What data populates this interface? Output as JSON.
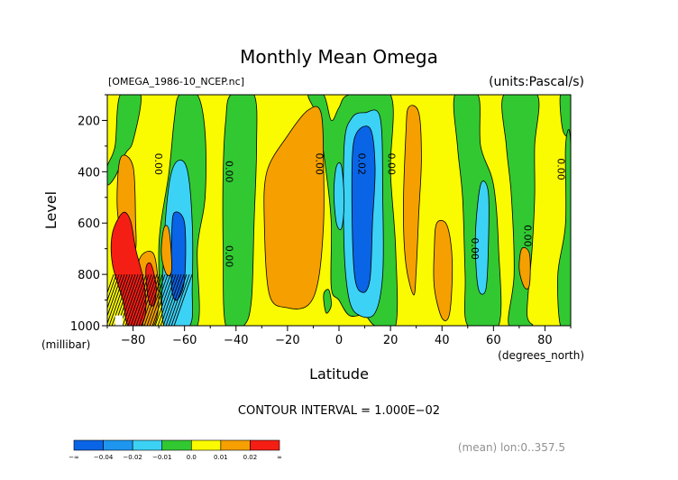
{
  "chart_data": {
    "type": "heatmap",
    "title": "Monthly Mean Omega",
    "file_label": "[OMEGA_1986-10_NCEP.nc]",
    "units_label": "(units:Pascal/s)",
    "xlabel": "Latitude",
    "x_units": "(degrees_north)",
    "ylabel": "Level",
    "y_units": "(millibar)",
    "xlim": [
      -90,
      90
    ],
    "ylim": [
      1000,
      100
    ],
    "x_ticks": [
      -80,
      -60,
      -40,
      -20,
      0,
      20,
      40,
      60,
      80
    ],
    "x_tick_labels": [
      "−80",
      "−60",
      "−40",
      "−20",
      "0",
      "20",
      "40",
      "60",
      "80"
    ],
    "y_ticks": [
      1000,
      800,
      600,
      400,
      200
    ],
    "y_tick_labels": [
      "1000",
      "800",
      "600",
      "400",
      "200"
    ],
    "contour_interval_text": "CONTOUR INTERVAL = 1.000E−02",
    "footer_text": "(mean) lon:0..357.5",
    "contour_labels": [
      {
        "lat": -71.5,
        "level": 370,
        "text": "0.00"
      },
      {
        "lat": -44,
        "level": 400,
        "text": "0.00"
      },
      {
        "lat": -44,
        "level": 730,
        "text": "0.00"
      },
      {
        "lat": -9,
        "level": 370,
        "text": "0.00"
      },
      {
        "lat": 7.5,
        "level": 370,
        "text": "0.02"
      },
      {
        "lat": 19,
        "level": 370,
        "text": "0.00"
      },
      {
        "lat": 51.5,
        "level": 700,
        "text": "0.00"
      },
      {
        "lat": 72,
        "level": 650,
        "text": "0.00"
      },
      {
        "lat": 85,
        "level": 390,
        "text": "0.00"
      }
    ],
    "colorbar": {
      "colors": [
        "#0a64e6",
        "#1e96f0",
        "#3cd2f5",
        "#32c832",
        "#fafa00",
        "#f5a000",
        "#f51e14"
      ],
      "labels": [
        "−∞",
        "−0.04",
        "−0.02",
        "−0.01",
        "0.0",
        "0.01",
        "0.02",
        "∞"
      ]
    },
    "bands": [
      {
        "name": "blue",
        "color": "#0a64e6",
        "regions": [
          [
            [
              6,
              270
            ],
            [
              12,
              230
            ],
            [
              14,
              380
            ],
            [
              13,
              600
            ],
            [
              12,
              820
            ],
            [
              9,
              870
            ],
            [
              6,
              800
            ],
            [
              5,
              500
            ]
          ],
          [
            [
              -64,
              560
            ],
            [
              -60,
              600
            ],
            [
              -60,
              820
            ],
            [
              -63,
              900
            ],
            [
              -65,
              850
            ],
            [
              -65,
              650
            ]
          ]
        ]
      },
      {
        "name": "lightblue",
        "color": "#3cd2f5",
        "regions": [
          [
            [
              5,
              190
            ],
            [
              10,
              170
            ],
            [
              16,
              190
            ],
            [
              17,
              500
            ],
            [
              17,
              800
            ],
            [
              14,
              950
            ],
            [
              8,
              960
            ],
            [
              4,
              900
            ],
            [
              2,
              700
            ],
            [
              2,
              300
            ]
          ],
          [
            [
              -63,
              360
            ],
            [
              -59,
              390
            ],
            [
              -57,
              600
            ],
            [
              -57,
              850
            ],
            [
              -58,
              1000
            ],
            [
              -68,
              1000
            ],
            [
              -68,
              700
            ],
            [
              -66,
              450
            ]
          ],
          [
            [
              -1,
              380
            ],
            [
              1,
              380
            ],
            [
              2,
              520
            ],
            [
              1,
              620
            ],
            [
              -1,
              600
            ],
            [
              -2,
              480
            ]
          ],
          [
            [
              55,
              450
            ],
            [
              58,
              480
            ],
            [
              58,
              700
            ],
            [
              57,
              860
            ],
            [
              54,
              850
            ],
            [
              53,
              650
            ]
          ]
        ]
      },
      {
        "name": "orange",
        "color": "#f5a000",
        "regions": [
          [
            [
              -28,
              400
            ],
            [
              -20,
              260
            ],
            [
              -12,
              160
            ],
            [
              -7,
              170
            ],
            [
              -6,
              380
            ],
            [
              -6,
              600
            ],
            [
              -8,
              820
            ],
            [
              -12,
              920
            ],
            [
              -20,
              930
            ],
            [
              -27,
              880
            ],
            [
              -29,
              600
            ]
          ],
          [
            [
              27,
              150
            ],
            [
              31,
              170
            ],
            [
              32,
              350
            ],
            [
              31,
              560
            ],
            [
              30,
              780
            ],
            [
              29,
              880
            ],
            [
              26,
              760
            ],
            [
              25,
              550
            ],
            [
              26,
              250
            ]
          ],
          [
            [
              38,
              600
            ],
            [
              42,
              610
            ],
            [
              44,
              750
            ],
            [
              43,
              950
            ],
            [
              40,
              970
            ],
            [
              37,
              850
            ],
            [
              37,
              700
            ]
          ],
          [
            [
              -85,
              350
            ],
            [
              -80,
              380
            ],
            [
              -79,
              600
            ],
            [
              -79,
              700
            ],
            [
              -82,
              700
            ],
            [
              -86,
              560
            ]
          ],
          [
            [
              -78,
              760
            ],
            [
              -72,
              720
            ],
            [
              -70,
              900
            ],
            [
              -72,
              1000
            ],
            [
              -76,
              1000
            ]
          ],
          [
            [
              -68,
              620
            ],
            [
              -66,
              630
            ],
            [
              -65,
              780
            ],
            [
              -67,
              800
            ],
            [
              -69,
              720
            ]
          ],
          [
            [
              71,
              700
            ],
            [
              74,
              720
            ],
            [
              74,
              840
            ],
            [
              72,
              850
            ],
            [
              70,
              780
            ]
          ]
        ]
      },
      {
        "name": "red",
        "color": "#f51e14",
        "regions": [
          [
            [
              -88,
              640
            ],
            [
              -84,
              560
            ],
            [
              -81,
              590
            ],
            [
              -79,
              700
            ],
            [
              -76,
              820
            ],
            [
              -75,
              930
            ],
            [
              -77,
              1000
            ],
            [
              -82,
              1000
            ],
            [
              -84,
              900
            ],
            [
              -88,
              760
            ]
          ],
          [
            [
              -75,
              780
            ],
            [
              -73,
              760
            ],
            [
              -71,
              850
            ],
            [
              -72,
              920
            ],
            [
              -74,
              900
            ]
          ]
        ]
      },
      {
        "name": "green",
        "color": "#32c832",
        "regions": [
          [
            [
              -90,
              380
            ],
            [
              -87,
              300
            ],
            [
              -85,
              100
            ],
            [
              -77,
              100
            ],
            [
              -80,
              280
            ],
            [
              -83,
              330
            ],
            [
              -87,
              420
            ],
            [
              -90,
              450
            ]
          ],
          [
            [
              -62,
              100
            ],
            [
              -55,
              100
            ],
            [
              -52,
              250
            ],
            [
              -52,
              500
            ],
            [
              -55,
              700
            ],
            [
              -55,
              1000
            ],
            [
              -67,
              1000
            ],
            [
              -70,
              700
            ],
            [
              -66,
              400
            ],
            [
              -64,
              200
            ]
          ],
          [
            [
              -42,
              100
            ],
            [
              -33,
              100
            ],
            [
              -32,
              300
            ],
            [
              -33,
              600
            ],
            [
              -34,
              900
            ],
            [
              -37,
              1000
            ],
            [
              -44,
              1000
            ],
            [
              -45,
              700
            ],
            [
              -45,
              400
            ],
            [
              -44,
              200
            ]
          ],
          [
            [
              -12,
              100
            ],
            [
              -6,
              100
            ],
            [
              -3,
              200
            ],
            [
              0,
              150
            ],
            [
              4,
              100
            ],
            [
              20,
              100
            ],
            [
              20,
              400
            ],
            [
              22,
              700
            ],
            [
              22,
              1000
            ],
            [
              14,
              1000
            ],
            [
              10,
              960
            ],
            [
              4,
              960
            ],
            [
              0,
              900
            ],
            [
              -3,
              850
            ],
            [
              -3,
              600
            ],
            [
              -5,
              400
            ],
            [
              -8,
              200
            ]
          ],
          [
            [
              -6,
              880
            ],
            [
              -4,
              860
            ],
            [
              -3,
              920
            ],
            [
              -5,
              950
            ]
          ],
          [
            [
              45,
              100
            ],
            [
              54,
              100
            ],
            [
              55,
              300
            ],
            [
              60,
              450
            ],
            [
              62,
              700
            ],
            [
              62,
              1000
            ],
            [
              50,
              1000
            ],
            [
              49,
              800
            ],
            [
              48,
              500
            ],
            [
              46,
              300
            ]
          ],
          [
            [
              64,
              100
            ],
            [
              77,
              100
            ],
            [
              76,
              300
            ],
            [
              76,
              500
            ],
            [
              75,
              700
            ],
            [
              73,
              950
            ],
            [
              75,
              1000
            ],
            [
              66,
              1000
            ],
            [
              68,
              800
            ],
            [
              67,
              500
            ],
            [
              65,
              300
            ]
          ],
          [
            [
              86,
              100
            ],
            [
              90,
              100
            ],
            [
              90,
              250
            ],
            [
              87,
              240
            ]
          ],
          [
            [
              88,
              300
            ],
            [
              90,
              300
            ],
            [
              90,
              1000
            ],
            [
              86,
              1000
            ],
            [
              85,
              800
            ],
            [
              88,
              600
            ]
          ],
          [
            [
              -77,
              960
            ],
            [
              -74,
              940
            ],
            [
              -73,
              1000
            ],
            [
              -77,
              1000
            ]
          ]
        ]
      }
    ]
  }
}
